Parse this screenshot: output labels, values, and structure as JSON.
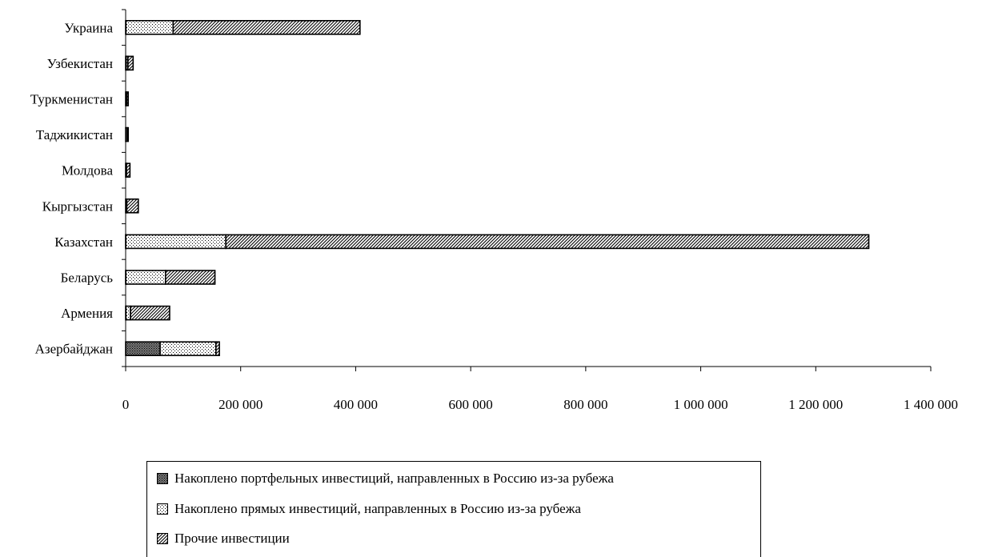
{
  "chart_data": {
    "type": "bar",
    "orientation": "horizontal",
    "stacked": true,
    "categories": [
      "Украина",
      "Узбекистан",
      "Туркменистан",
      "Таджикистан",
      "Молдова",
      "Кыргызстан",
      "Казахстан",
      "Беларусь",
      "Армения",
      "Азербайджан"
    ],
    "series": [
      {
        "name": "Накоплено портфельных инвестиций, направленных в Россию из-за рубежа",
        "pattern": "crosshatch-dense",
        "values": [
          500,
          1000,
          0,
          0,
          500,
          500,
          200,
          300,
          500,
          60000
        ]
      },
      {
        "name": "Накоплено прямых инвестиций, направленных в Россию из-за рубежа",
        "pattern": "dots",
        "values": [
          82000,
          3000,
          2000,
          2500,
          1000,
          1500,
          174000,
          69000,
          8000,
          97000
        ]
      },
      {
        "name": "Прочие инвестиции",
        "pattern": "diagonal",
        "values": [
          325000,
          9000,
          2500,
          2000,
          6000,
          20000,
          1118000,
          86000,
          68000,
          6000
        ]
      }
    ],
    "xlim": [
      0,
      1400000
    ],
    "xticks": [
      0,
      200000,
      400000,
      600000,
      800000,
      1000000,
      1200000,
      1400000
    ],
    "xtick_labels": [
      "0",
      "200 000",
      "400 000",
      "600 000",
      "800 000",
      "1 000 000",
      "1 200 000",
      "1 400 000"
    ],
    "grid": false,
    "legend_position": "bottom"
  },
  "colors": {
    "background": "#ffffff",
    "bar_fill": "#ffffff",
    "stroke": "#000000"
  }
}
